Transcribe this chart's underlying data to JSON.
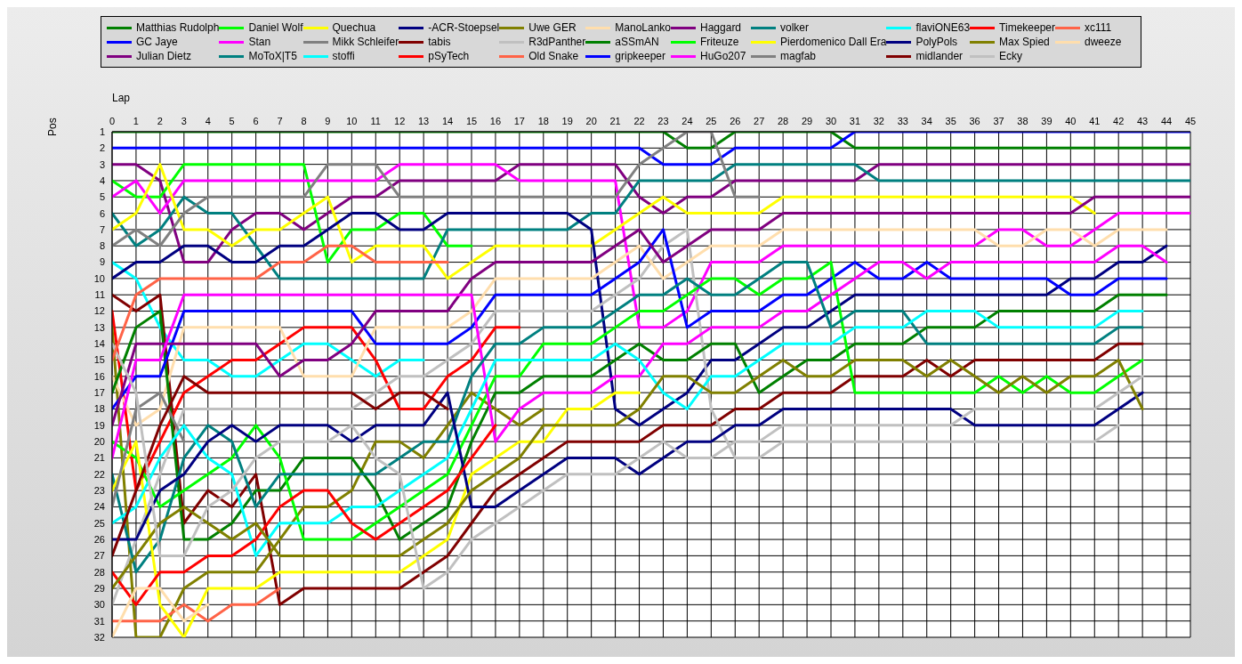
{
  "chart_data": {
    "type": "line",
    "xlabel": "Lap",
    "ylabel": "Pos",
    "legend": "top",
    "grid": true,
    "x": [
      0,
      1,
      2,
      3,
      4,
      5,
      6,
      7,
      8,
      9,
      10,
      11,
      12,
      13,
      14,
      15,
      16,
      17,
      18,
      19,
      20,
      21,
      22,
      23,
      24,
      25,
      26,
      27,
      28,
      29,
      30,
      31,
      32,
      33,
      34,
      35,
      36,
      37,
      38,
      39,
      40,
      41,
      42,
      43,
      44,
      45
    ],
    "xlim": [
      0,
      45
    ],
    "xticks": [
      0,
      1,
      2,
      3,
      4,
      5,
      6,
      7,
      8,
      9,
      10,
      11,
      12,
      13,
      14,
      15,
      16,
      17,
      18,
      19,
      20,
      21,
      22,
      23,
      24,
      25,
      26,
      27,
      28,
      29,
      30,
      31,
      32,
      33,
      34,
      35,
      36,
      37,
      38,
      39,
      40,
      41,
      42,
      43,
      44,
      45
    ],
    "ylim": [
      32,
      1
    ],
    "yticks": [
      1,
      2,
      3,
      4,
      5,
      6,
      7,
      8,
      9,
      10,
      11,
      12,
      13,
      14,
      15,
      16,
      17,
      18,
      19,
      20,
      21,
      22,
      23,
      24,
      25,
      26,
      27,
      28,
      29,
      30,
      31,
      32
    ],
    "series": [
      {
        "name": "Matthias Rudolph",
        "color": "#008000",
        "values": [
          1,
          1,
          1,
          1,
          1,
          1,
          1,
          1,
          1,
          1,
          1,
          1,
          1,
          1,
          1,
          1,
          1,
          1,
          1,
          1,
          1,
          1,
          1,
          1,
          2,
          2,
          1,
          1,
          1,
          1,
          1,
          2,
          2,
          2,
          2,
          2,
          2,
          2,
          2,
          2,
          2,
          2,
          2,
          2,
          2,
          2
        ]
      },
      {
        "name": "GC Jaye",
        "color": "#0000ff",
        "values": [
          2,
          2,
          2,
          2,
          2,
          2,
          2,
          2,
          2,
          2,
          2,
          2,
          2,
          2,
          2,
          2,
          2,
          2,
          2,
          2,
          2,
          2,
          2,
          3,
          3,
          3,
          2,
          2,
          2,
          2,
          2,
          1,
          1,
          1,
          1,
          1,
          1,
          1,
          1,
          1,
          1,
          1,
          1,
          1,
          1,
          1
        ]
      },
      {
        "name": "Julian Dietz",
        "color": "#800080",
        "values": [
          3,
          3,
          4,
          9,
          9,
          7,
          6,
          6,
          7,
          6,
          5,
          5,
          4,
          4,
          4,
          4,
          4,
          3,
          3,
          3,
          3,
          3,
          5,
          6,
          5,
          5,
          4,
          4,
          4,
          4,
          4,
          4,
          3,
          3,
          3,
          3,
          3,
          3,
          3,
          3,
          3,
          3,
          3,
          3,
          3,
          3
        ]
      },
      {
        "name": "Daniel Wolf",
        "color": "#00ff00",
        "values": [
          4,
          5,
          5,
          3,
          3,
          3,
          3,
          3,
          3,
          9,
          7,
          7,
          6,
          6,
          8,
          8,
          null,
          null,
          null,
          null,
          null,
          null,
          null,
          null,
          null,
          null,
          null,
          null,
          null,
          null,
          null,
          null,
          null,
          null,
          null,
          null,
          null,
          null,
          null,
          null,
          null,
          null,
          null,
          null,
          null,
          null
        ]
      },
      {
        "name": "Stan",
        "color": "#ff00ff",
        "values": [
          5,
          4,
          6,
          4,
          4,
          4,
          4,
          4,
          4,
          4,
          4,
          4,
          3,
          3,
          3,
          3,
          3,
          4,
          4,
          4,
          4,
          4,
          13,
          13,
          12,
          9,
          9,
          9,
          8,
          8,
          8,
          8,
          8,
          8,
          8,
          8,
          8,
          7,
          7,
          8,
          8,
          7,
          6,
          6,
          6,
          6
        ]
      },
      {
        "name": "MoToX|T5",
        "color": "#008080",
        "values": [
          6,
          8,
          7,
          5,
          6,
          6,
          8,
          10,
          10,
          10,
          10,
          10,
          10,
          10,
          7,
          7,
          7,
          7,
          7,
          7,
          6,
          6,
          4,
          4,
          4,
          4,
          3,
          3,
          3,
          3,
          3,
          3,
          4,
          4,
          4,
          4,
          4,
          4,
          4,
          4,
          4,
          4,
          4,
          4,
          4,
          4
        ]
      },
      {
        "name": "Quechua",
        "color": "#ffff00",
        "values": [
          7,
          6,
          3,
          7,
          7,
          8,
          7,
          7,
          6,
          5,
          9,
          8,
          8,
          8,
          10,
          9,
          8,
          8,
          8,
          8,
          8,
          7,
          6,
          5,
          6,
          6,
          6,
          6,
          5,
          5,
          5,
          5,
          5,
          5,
          5,
          5,
          5,
          5,
          5,
          5,
          5,
          6,
          null,
          null,
          null,
          null
        ]
      },
      {
        "name": "Mikk Schleifer",
        "color": "#808080",
        "values": [
          8,
          7,
          8,
          6,
          5,
          5,
          5,
          5,
          5,
          3,
          3,
          3,
          5,
          5,
          5,
          5,
          5,
          5,
          5,
          5,
          5,
          5,
          3,
          2,
          1,
          1,
          5,
          5,
          null,
          null,
          null,
          null,
          null,
          null,
          null,
          null,
          null,
          null,
          null,
          null,
          null,
          null,
          null,
          null,
          null,
          null
        ]
      },
      {
        "name": "stoffi",
        "color": "#00ffff",
        "values": [
          9,
          10,
          13,
          15,
          15,
          16,
          16,
          15,
          14,
          14,
          15,
          16,
          15,
          15,
          null,
          null,
          null,
          null,
          null,
          null,
          null,
          null,
          null,
          null,
          null,
          null,
          null,
          null,
          null,
          null,
          null,
          null,
          null,
          null,
          null,
          null,
          null,
          null,
          null,
          null,
          null,
          null,
          null,
          null,
          null,
          null
        ]
      },
      {
        "name": "-ACR-Stoepsel",
        "color": "#000080",
        "values": [
          10,
          9,
          9,
          8,
          8,
          9,
          9,
          8,
          8,
          7,
          6,
          6,
          7,
          7,
          6,
          6,
          6,
          6,
          6,
          6,
          7,
          18,
          19,
          18,
          17,
          15,
          15,
          14,
          13,
          13,
          12,
          11,
          11,
          11,
          11,
          11,
          11,
          11,
          11,
          11,
          10,
          10,
          9,
          9,
          8,
          null
        ]
      },
      {
        "name": "tabis",
        "color": "#800000",
        "values": [
          11,
          12,
          11,
          25,
          23,
          24,
          22,
          30,
          29,
          29,
          29,
          29,
          29,
          28,
          27,
          25,
          23,
          22,
          21,
          20,
          20,
          20,
          20,
          19,
          19,
          19,
          18,
          18,
          17,
          17,
          17,
          16,
          16,
          16,
          15,
          16,
          15,
          15,
          15,
          15,
          15,
          15,
          14,
          14,
          null,
          null
        ]
      },
      {
        "name": "pSyTech",
        "color": "#ff0000",
        "values": [
          12,
          23,
          20,
          17,
          16,
          15,
          15,
          14,
          13,
          13,
          13,
          15,
          18,
          18,
          16,
          15,
          13,
          13,
          null,
          null,
          null,
          null,
          null,
          null,
          null,
          null,
          null,
          null,
          null,
          null,
          null,
          null,
          null,
          null,
          null,
          null,
          null,
          null,
          null,
          null,
          null,
          null,
          null,
          null,
          null,
          null
        ]
      },
      {
        "name": "Uwe GER",
        "color": "#808000",
        "values": [
          13,
          32,
          32,
          29,
          28,
          28,
          28,
          26,
          24,
          24,
          23,
          20,
          20,
          21,
          19,
          17,
          18,
          19,
          18,
          null,
          null,
          null,
          null,
          null,
          null,
          null,
          null,
          null,
          null,
          null,
          null,
          null,
          null,
          null,
          null,
          null,
          null,
          null,
          null,
          null,
          null,
          null,
          null,
          null,
          null,
          null
        ]
      },
      {
        "name": "R3dPanther",
        "color": "#c0c0c0",
        "values": [
          30,
          26,
          22,
          18,
          18,
          18,
          18,
          18,
          18,
          18,
          18,
          17,
          16,
          16,
          15,
          14,
          12,
          12,
          12,
          12,
          12,
          11,
          10,
          8,
          7,
          18,
          21,
          21,
          20,
          20,
          20,
          20,
          20,
          20,
          20,
          20,
          20,
          20,
          20,
          20,
          20,
          20,
          19,
          null,
          null,
          null
        ]
      },
      {
        "name": "Old Snake",
        "color": "#ff6347",
        "values": [
          31,
          31,
          31,
          30,
          31,
          30,
          30,
          29,
          null,
          null,
          null,
          null,
          null,
          null,
          null,
          null,
          null,
          null,
          null,
          null,
          null,
          null,
          null,
          null,
          null,
          null,
          null,
          null,
          null,
          null,
          null,
          null,
          null,
          null,
          null,
          null,
          null,
          null,
          null,
          null,
          null,
          null,
          null,
          null,
          null,
          null
        ]
      },
      {
        "name": "ManoLanko",
        "color": "#ffdead",
        "values": [
          16,
          19,
          18,
          13,
          13,
          13,
          13,
          13,
          16,
          16,
          16,
          13,
          13,
          13,
          13,
          12,
          10,
          10,
          10,
          10,
          10,
          9,
          8,
          10,
          9,
          8,
          8,
          8,
          7,
          7,
          7,
          7,
          7,
          7,
          7,
          7,
          7,
          8,
          8,
          7,
          7,
          8,
          7,
          7,
          7,
          null
        ]
      },
      {
        "name": "aSSmAN",
        "color": "#008000",
        "values": [
          17,
          13,
          12,
          26,
          26,
          25,
          23,
          23,
          21,
          21,
          21,
          23,
          26,
          25,
          24,
          20,
          17,
          17,
          16,
          16,
          16,
          15,
          14,
          15,
          15,
          14,
          14,
          17,
          16,
          15,
          15,
          14,
          14,
          14,
          13,
          13,
          13,
          12,
          12,
          12,
          12,
          12,
          11,
          11,
          11,
          null
        ]
      },
      {
        "name": "gripkeeper",
        "color": "#0000ff",
        "values": [
          18,
          16,
          16,
          12,
          12,
          12,
          12,
          12,
          12,
          12,
          12,
          14,
          14,
          14,
          14,
          13,
          11,
          11,
          11,
          11,
          11,
          10,
          9,
          7,
          13,
          12,
          12,
          12,
          11,
          11,
          10,
          9,
          10,
          10,
          9,
          10,
          10,
          10,
          10,
          10,
          11,
          11,
          10,
          10,
          10,
          null
        ]
      },
      {
        "name": "Haggard",
        "color": "#800080",
        "values": [
          19,
          14,
          14,
          14,
          14,
          14,
          14,
          16,
          15,
          15,
          14,
          12,
          12,
          12,
          12,
          10,
          9,
          9,
          9,
          9,
          9,
          8,
          7,
          9,
          8,
          7,
          7,
          7,
          6,
          6,
          6,
          6,
          6,
          6,
          6,
          6,
          6,
          6,
          6,
          6,
          6,
          5,
          5,
          5,
          5,
          5
        ]
      },
      {
        "name": "Friteuze",
        "color": "#00ff00",
        "values": [
          20,
          21,
          24,
          23,
          22,
          21,
          19,
          21,
          26,
          26,
          26,
          25,
          24,
          23,
          22,
          19,
          16,
          16,
          14,
          14,
          14,
          13,
          12,
          12,
          11,
          10,
          10,
          11,
          10,
          10,
          9,
          17,
          17,
          17,
          17,
          17,
          17,
          16,
          17,
          16,
          17,
          17,
          16,
          15,
          null,
          null
        ]
      },
      {
        "name": "HuGo207",
        "color": "#ff00ff",
        "values": [
          21,
          15,
          15,
          11,
          11,
          11,
          11,
          11,
          11,
          11,
          11,
          11,
          11,
          11,
          11,
          11,
          20,
          18,
          17,
          17,
          17,
          16,
          16,
          14,
          14,
          13,
          13,
          13,
          12,
          12,
          11,
          10,
          9,
          9,
          10,
          9,
          9,
          9,
          9,
          9,
          9,
          9,
          8,
          8,
          9,
          null
        ]
      },
      {
        "name": "volker",
        "color": "#008080",
        "values": [
          22,
          28,
          26,
          21,
          19,
          20,
          24,
          22,
          22,
          22,
          22,
          22,
          21,
          20,
          20,
          16,
          14,
          14,
          13,
          13,
          13,
          12,
          11,
          11,
          10,
          11,
          11,
          10,
          9,
          9,
          13,
          12,
          12,
          12,
          14,
          14,
          14,
          14,
          14,
          14,
          14,
          14,
          13,
          13,
          null,
          null
        ]
      },
      {
        "name": "Pierdomenico Dall Era",
        "color": "#ffff00",
        "values": [
          23,
          20,
          30,
          32,
          29,
          29,
          29,
          28,
          28,
          28,
          28,
          28,
          28,
          27,
          26,
          22,
          21,
          20,
          20,
          18,
          18,
          17,
          17,
          null,
          null,
          null,
          null,
          null,
          null,
          null,
          null,
          null,
          null,
          null,
          null,
          null,
          null,
          null,
          null,
          null,
          null,
          null,
          null,
          null,
          null,
          null
        ]
      },
      {
        "name": "magfab",
        "color": "#808080",
        "values": [
          24,
          18,
          17,
          20,
          null,
          null,
          null,
          null,
          null,
          null,
          null,
          null,
          null,
          null,
          null,
          null,
          null,
          null,
          null,
          null,
          null,
          null,
          null,
          null,
          null,
          null,
          null,
          null,
          null,
          null,
          null,
          null,
          null,
          null,
          null,
          null,
          null,
          null,
          null,
          null,
          null,
          null,
          null,
          null,
          null,
          null
        ]
      },
      {
        "name": "flaviONE63",
        "color": "#00ffff",
        "values": [
          25,
          24,
          21,
          19,
          21,
          22,
          27,
          25,
          25,
          25,
          24,
          24,
          23,
          22,
          21,
          18,
          15,
          15,
          15,
          15,
          15,
          14,
          15,
          17,
          18,
          16,
          16,
          15,
          14,
          14,
          14,
          13,
          13,
          13,
          12,
          12,
          12,
          13,
          13,
          13,
          13,
          13,
          12,
          12,
          null,
          null
        ]
      },
      {
        "name": "PolyPols",
        "color": "#000080",
        "values": [
          26,
          26,
          23,
          22,
          20,
          19,
          20,
          19,
          19,
          19,
          20,
          19,
          19,
          19,
          17,
          24,
          24,
          23,
          22,
          21,
          21,
          21,
          22,
          21,
          20,
          20,
          19,
          19,
          18,
          18,
          18,
          18,
          18,
          18,
          18,
          18,
          19,
          19,
          19,
          19,
          19,
          19,
          18,
          17,
          null,
          null
        ]
      },
      {
        "name": "midlander",
        "color": "#800000",
        "values": [
          27,
          23,
          19,
          16,
          17,
          17,
          17,
          17,
          17,
          17,
          17,
          18,
          17,
          17,
          18,
          null,
          null,
          null,
          null,
          null,
          null,
          null,
          null,
          null,
          null,
          null,
          null,
          null,
          null,
          null,
          null,
          null,
          null,
          null,
          null,
          null,
          null,
          null,
          null,
          null,
          null,
          null,
          null,
          null,
          null,
          null
        ]
      },
      {
        "name": "Timekeeper",
        "color": "#ff0000",
        "values": [
          28,
          30,
          28,
          28,
          27,
          27,
          26,
          24,
          23,
          23,
          25,
          26,
          25,
          24,
          23,
          21,
          19,
          null,
          null,
          null,
          null,
          null,
          null,
          null,
          null,
          null,
          null,
          null,
          null,
          null,
          null,
          null,
          null,
          null,
          null,
          null,
          null,
          null,
          null,
          null,
          null,
          null,
          null,
          null,
          null,
          null
        ]
      },
      {
        "name": "Max Spied",
        "color": "#808000",
        "values": [
          29,
          27,
          25,
          24,
          25,
          26,
          25,
          27,
          27,
          27,
          27,
          27,
          27,
          26,
          25,
          23,
          22,
          21,
          19,
          19,
          19,
          19,
          18,
          16,
          16,
          17,
          17,
          16,
          15,
          16,
          16,
          15,
          15,
          15,
          16,
          15,
          16,
          17,
          16,
          17,
          16,
          16,
          15,
          18,
          null,
          null
        ]
      },
      {
        "name": "Ecky",
        "color": "#c0c0c0",
        "values": [
          14,
          17,
          27,
          27,
          24,
          23,
          21,
          20,
          20,
          20,
          19,
          21,
          22,
          29,
          28,
          26,
          25,
          24,
          23,
          22,
          22,
          22,
          21,
          20,
          21,
          21,
          20,
          20,
          19,
          19,
          19,
          19,
          19,
          19,
          19,
          19,
          18,
          18,
          18,
          18,
          18,
          18,
          17,
          16,
          null,
          null
        ]
      },
      {
        "name": "xc111",
        "color": "#ff6347",
        "values": [
          15,
          11,
          10,
          10,
          10,
          10,
          10,
          9,
          9,
          8,
          8,
          9,
          9,
          9,
          9,
          null,
          null,
          null,
          null,
          null,
          null,
          null,
          null,
          null,
          null,
          null,
          null,
          null,
          null,
          null,
          null,
          null,
          null,
          null,
          null,
          null,
          null,
          null,
          null,
          null,
          null,
          null,
          null,
          null,
          null,
          null
        ]
      },
      {
        "name": "dweeze",
        "color": "#ffdead",
        "values": [
          32,
          29,
          29,
          31,
          30,
          null,
          null,
          null,
          null,
          null,
          null,
          null,
          null,
          null,
          null,
          null,
          null,
          null,
          null,
          null,
          null,
          null,
          null,
          null,
          null,
          null,
          null,
          null,
          null,
          null,
          null,
          null,
          null,
          null,
          null,
          null,
          null,
          null,
          null,
          null,
          null,
          null,
          null,
          null,
          null,
          null
        ]
      }
    ]
  }
}
